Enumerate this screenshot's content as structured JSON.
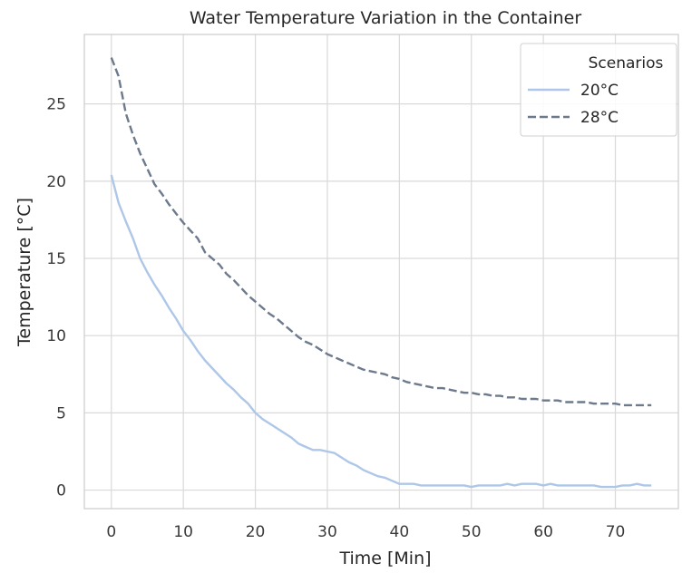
{
  "chart_data": {
    "type": "line",
    "title": "Water Temperature Variation in the Container",
    "xlabel": "Time [Min]",
    "ylabel": "Temperature [°C]",
    "xlim": [
      -3.75,
      78.75
    ],
    "ylim": [
      -1.2,
      29.5
    ],
    "xticks": [
      0,
      10,
      20,
      30,
      40,
      50,
      60,
      70
    ],
    "yticks": [
      0,
      5,
      10,
      15,
      20,
      25
    ],
    "grid": true,
    "legend": {
      "title": "Scenarios",
      "placement": "top-right"
    },
    "x": [
      0,
      1,
      2,
      3,
      4,
      5,
      6,
      7,
      8,
      9,
      10,
      11,
      12,
      13,
      14,
      15,
      16,
      17,
      18,
      19,
      20,
      21,
      22,
      23,
      24,
      25,
      26,
      27,
      28,
      29,
      30,
      31,
      32,
      33,
      34,
      35,
      36,
      37,
      38,
      39,
      40,
      41,
      42,
      43,
      44,
      45,
      46,
      47,
      48,
      49,
      50,
      51,
      52,
      53,
      54,
      55,
      56,
      57,
      58,
      59,
      60,
      61,
      62,
      63,
      64,
      65,
      66,
      67,
      68,
      69,
      70,
      71,
      72,
      73,
      74,
      75
    ],
    "series": [
      {
        "name": "20°C",
        "color": "#aec7e8",
        "dash": "solid",
        "values": [
          20.4,
          18.6,
          17.4,
          16.3,
          15.0,
          14.1,
          13.3,
          12.6,
          11.8,
          11.1,
          10.3,
          9.7,
          9.0,
          8.4,
          7.9,
          7.4,
          6.9,
          6.5,
          6.0,
          5.6,
          5.0,
          4.6,
          4.3,
          4.0,
          3.7,
          3.4,
          3.0,
          2.8,
          2.6,
          2.6,
          2.5,
          2.4,
          2.1,
          1.8,
          1.6,
          1.3,
          1.1,
          0.9,
          0.8,
          0.6,
          0.4,
          0.4,
          0.4,
          0.3,
          0.3,
          0.3,
          0.3,
          0.3,
          0.3,
          0.3,
          0.2,
          0.3,
          0.3,
          0.3,
          0.3,
          0.4,
          0.3,
          0.4,
          0.4,
          0.4,
          0.3,
          0.4,
          0.3,
          0.3,
          0.3,
          0.3,
          0.3,
          0.3,
          0.2,
          0.2,
          0.2,
          0.3,
          0.3,
          0.4,
          0.3,
          0.3
        ]
      },
      {
        "name": "28°C",
        "color": "#6c7a8c",
        "dash": "dashed",
        "values": [
          28.0,
          26.8,
          24.4,
          23.0,
          21.8,
          20.8,
          19.8,
          19.2,
          18.5,
          17.9,
          17.3,
          16.8,
          16.3,
          15.4,
          15.0,
          14.6,
          14.0,
          13.6,
          13.1,
          12.6,
          12.2,
          11.8,
          11.4,
          11.1,
          10.7,
          10.3,
          9.9,
          9.6,
          9.4,
          9.1,
          8.8,
          8.6,
          8.4,
          8.2,
          8.0,
          7.8,
          7.7,
          7.6,
          7.5,
          7.3,
          7.2,
          7.0,
          6.9,
          6.8,
          6.7,
          6.6,
          6.6,
          6.5,
          6.4,
          6.3,
          6.3,
          6.2,
          6.2,
          6.1,
          6.1,
          6.0,
          6.0,
          5.9,
          5.9,
          5.9,
          5.8,
          5.8,
          5.8,
          5.7,
          5.7,
          5.7,
          5.7,
          5.6,
          5.6,
          5.6,
          5.6,
          5.5,
          5.5,
          5.5,
          5.5,
          5.5
        ]
      }
    ]
  }
}
